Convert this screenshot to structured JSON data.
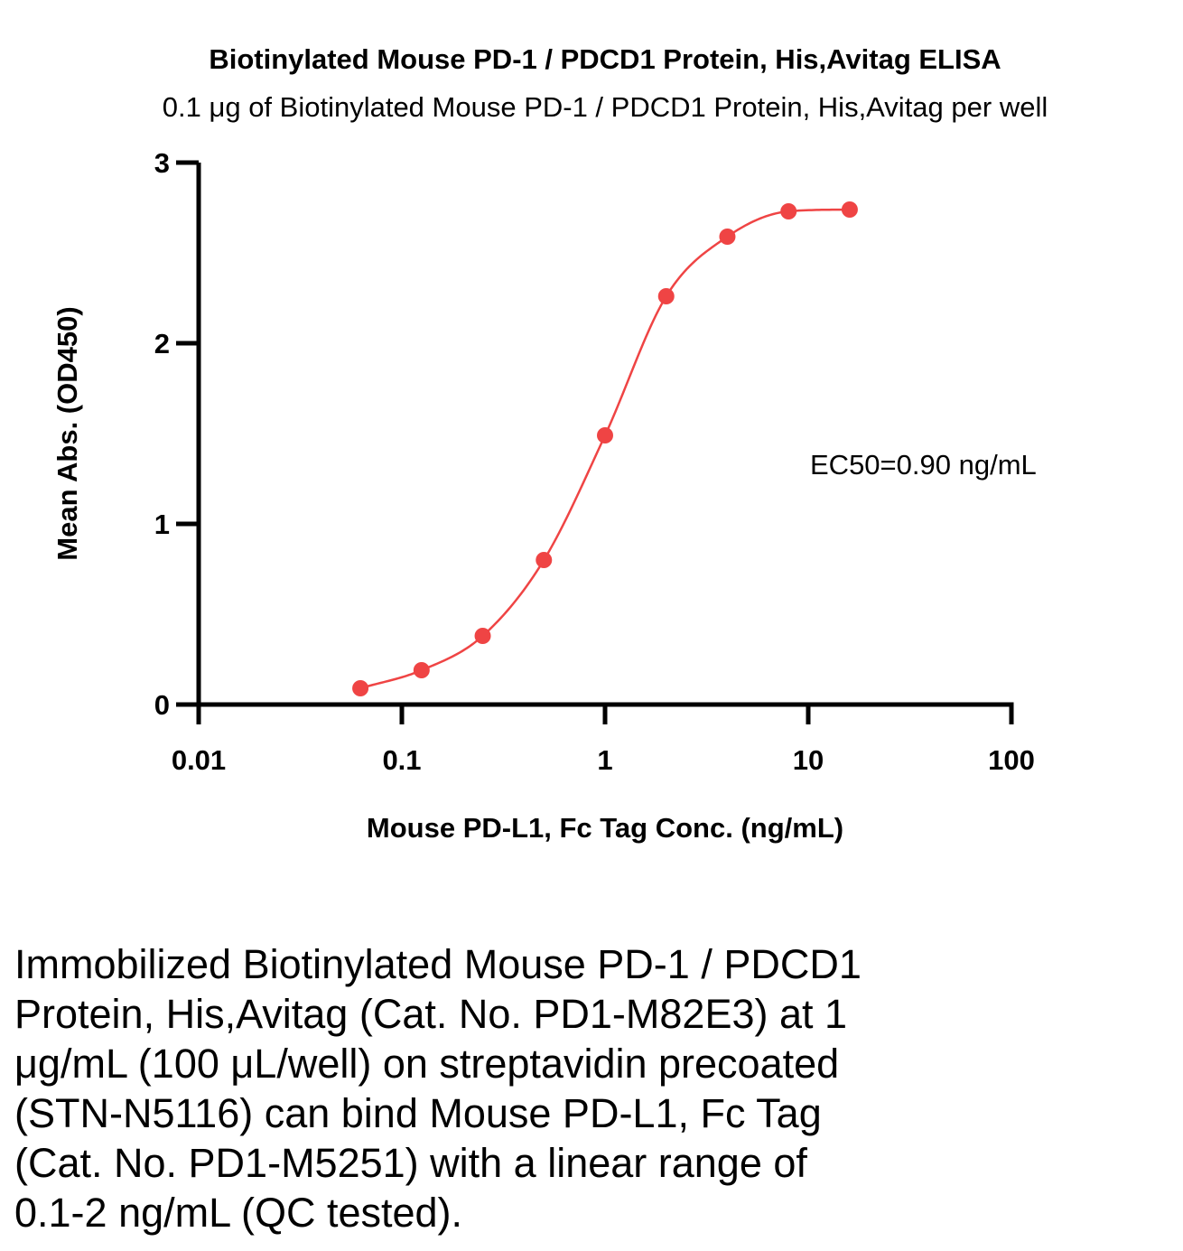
{
  "chart_data": {
    "type": "scatter",
    "title": "Biotinylated Mouse PD-1 / PDCD1 Protein, His,Avitag ELISA",
    "subtitle": "0.1 μg of Biotinylated Mouse PD-1 / PDCD1 Protein, His,Avitag per well",
    "xlabel": "Mouse PD-L1, Fc Tag Conc. (ng/mL)",
    "ylabel": "Mean Abs. (OD450)",
    "x_scale": "log",
    "xlim": [
      0.01,
      100
    ],
    "ylim": [
      0,
      3
    ],
    "x_ticks": [
      "0.01",
      "0.1",
      "1",
      "10",
      "100"
    ],
    "y_ticks": [
      "0",
      "1",
      "2",
      "3"
    ],
    "grid": false,
    "color": "#ef4444",
    "series": [
      {
        "x": [
          0.0625,
          0.125,
          0.25,
          0.5,
          1,
          2,
          4,
          8,
          16
        ],
        "y": [
          0.09,
          0.19,
          0.38,
          0.8,
          1.49,
          2.26,
          2.59,
          2.73,
          2.74
        ]
      }
    ],
    "annotation": "EC50=0.90 ng/mL"
  },
  "caption_lines": [
    "Immobilized Biotinylated Mouse PD-1 / PDCD1",
    "Protein, His,Avitag (Cat. No. PD1-M82E3) at 1",
    "μg/mL (100 μL/well) on streptavidin precoated",
    "(STN-N5116) can bind Mouse PD-L1, Fc Tag",
    "(Cat. No. PD1-M5251) with a linear range of",
    "0.1-2 ng/mL (QC tested)."
  ]
}
